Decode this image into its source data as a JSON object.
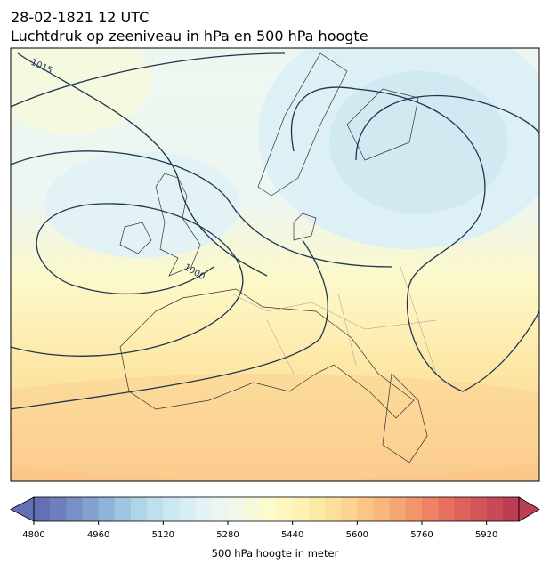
{
  "header": {
    "title": "28-02-1821 12 UTC",
    "subtitle": "Luchtdruk op zeeniveau in hPa en 500 hPa hoogte"
  },
  "map": {
    "isobar_labels": [
      1015,
      1000
    ]
  },
  "colorbar": {
    "label": "500 hPa hoogte in meter",
    "lim": [
      4800,
      6000
    ],
    "ticks": [
      4800,
      4960,
      5120,
      5280,
      5440,
      5600,
      5760,
      5920
    ],
    "colors": [
      "#6470b4",
      "#6d80bd",
      "#7890c6",
      "#83a2cf",
      "#90b4d8",
      "#9fc5e0",
      "#afd5e8",
      "#bee0ee",
      "#cbe8f1",
      "#d8eef4",
      "#e3f3f6",
      "#ebf6f3",
      "#f1f8ea",
      "#f6fadc",
      "#fbfbcd",
      "#fef8c0",
      "#fef1b3",
      "#fde9a6",
      "#fddf9b",
      "#fcd390",
      "#fbc586",
      "#f9b67d",
      "#f6a674",
      "#f2956b",
      "#ed8364",
      "#e6725f",
      "#de625b",
      "#d45558",
      "#c84957",
      "#bb3e55"
    ]
  }
}
